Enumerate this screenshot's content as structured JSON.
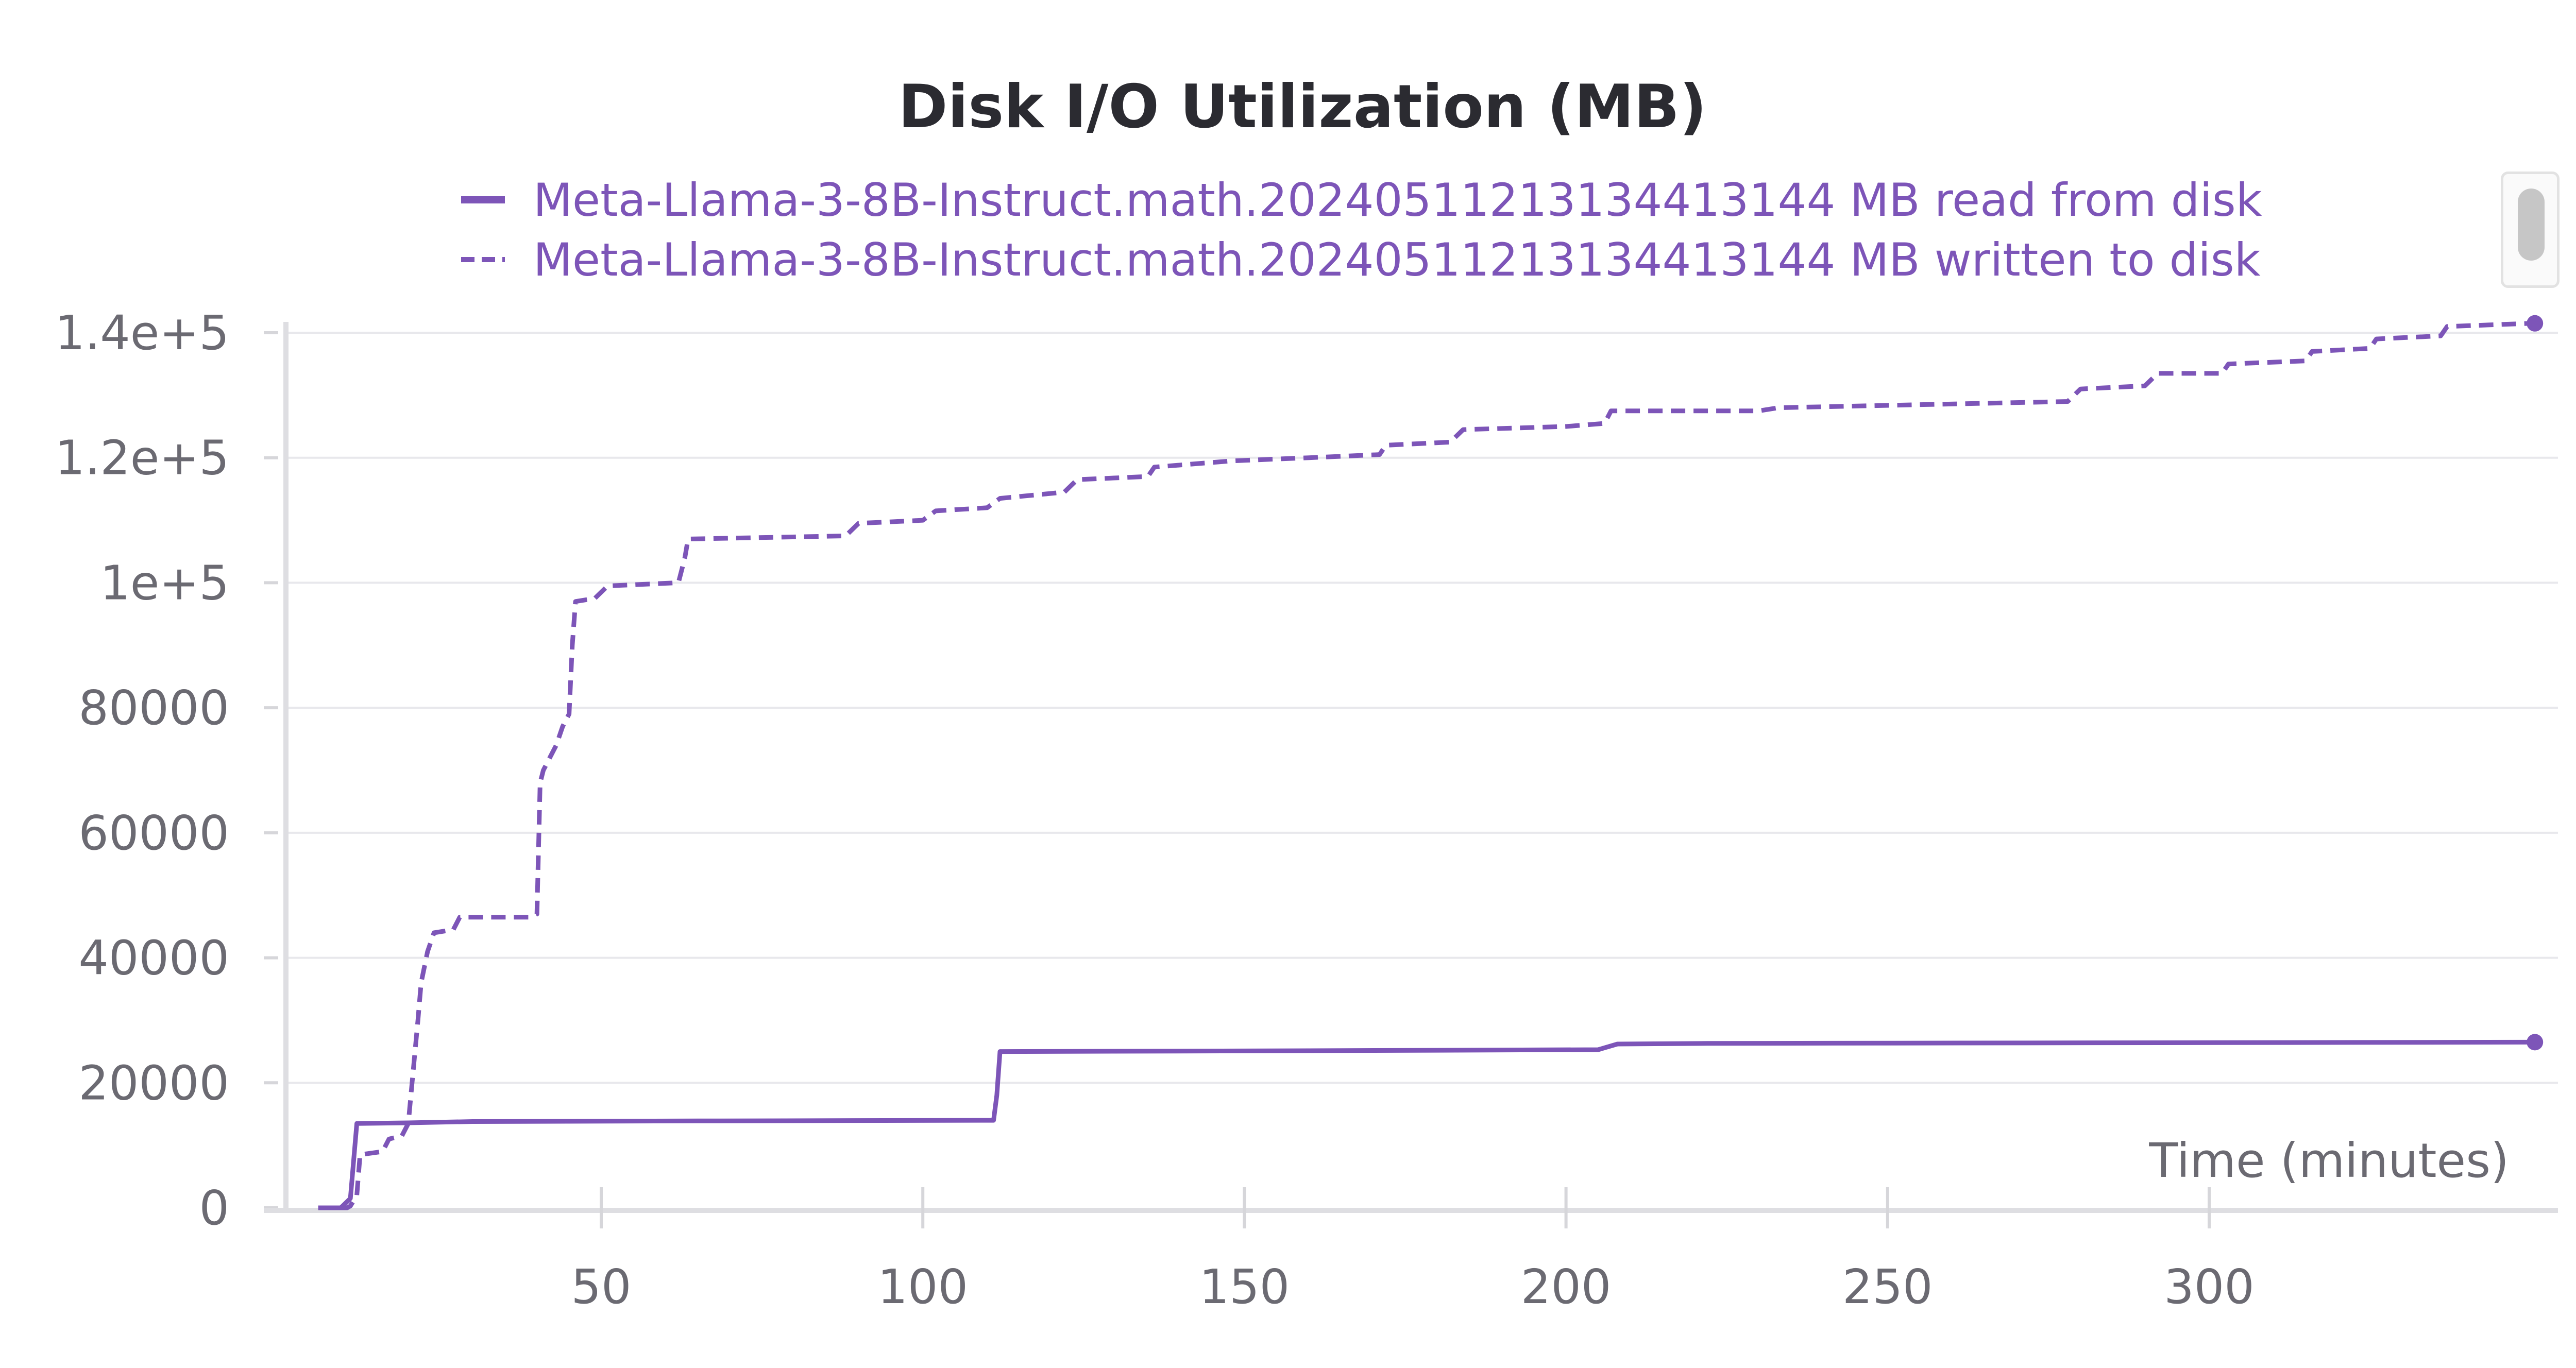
{
  "chart_data": {
    "type": "line",
    "title": "Disk I/O Utilization (MB)",
    "xlabel": "Time (minutes)",
    "ylabel": "",
    "xlim": [
      0,
      350
    ],
    "ylim": [
      0,
      140000
    ],
    "x_ticks": [
      50,
      100,
      150,
      200,
      250,
      300
    ],
    "x_tick_labels": [
      "50",
      "100",
      "150",
      "200",
      "250",
      "300"
    ],
    "y_ticks": [
      0,
      20000,
      40000,
      60000,
      80000,
      100000,
      120000,
      140000
    ],
    "y_tick_labels": [
      "0",
      "20000",
      "40000",
      "60000",
      "80000",
      "1e+5",
      "1.2e+5",
      "1.4e+5"
    ],
    "grid": true,
    "legend_position": "top-center",
    "series": [
      {
        "name": "Meta-Llama-3-8B-Instruct.math.20240511213134413144 MB read from disk",
        "style": "solid",
        "color": "#7d55b8",
        "points": [
          [
            6,
            0
          ],
          [
            9.5,
            0
          ],
          [
            10.5,
            1000
          ],
          [
            11,
            1500
          ],
          [
            12,
            13500
          ],
          [
            20,
            13600
          ],
          [
            30,
            13800
          ],
          [
            65,
            13900
          ],
          [
            111,
            14000
          ],
          [
            111.5,
            18000
          ],
          [
            112,
            25000
          ],
          [
            150,
            25100
          ],
          [
            205,
            25300
          ],
          [
            206,
            25600
          ],
          [
            208,
            26200
          ],
          [
            222,
            26300
          ],
          [
            350,
            26500
          ]
        ]
      },
      {
        "name": "Meta-Llama-3-8B-Instruct.math.20240511213134413144 MB written to disk",
        "style": "dashed",
        "color": "#7d55b8",
        "points": [
          [
            6,
            0
          ],
          [
            10.5,
            0
          ],
          [
            11,
            300
          ],
          [
            12,
            2000
          ],
          [
            12.5,
            8500
          ],
          [
            16,
            9000
          ],
          [
            17,
            11000
          ],
          [
            19,
            11500
          ],
          [
            20,
            13500
          ],
          [
            20.5,
            19000
          ],
          [
            21.5,
            30000
          ],
          [
            22,
            36000
          ],
          [
            23,
            41000
          ],
          [
            24,
            44000
          ],
          [
            27,
            44500
          ],
          [
            28,
            46500
          ],
          [
            39,
            46500
          ],
          [
            40,
            47000
          ],
          [
            40.5,
            68000
          ],
          [
            41,
            70000
          ],
          [
            42,
            72000
          ],
          [
            43,
            74000
          ],
          [
            44,
            77000
          ],
          [
            45,
            79000
          ],
          [
            45.5,
            90000
          ],
          [
            46,
            97000
          ],
          [
            49,
            97500
          ],
          [
            51,
            99500
          ],
          [
            62,
            100000
          ],
          [
            63,
            104000
          ],
          [
            63.5,
            107000
          ],
          [
            88,
            107500
          ],
          [
            90,
            109500
          ],
          [
            100,
            110000
          ],
          [
            102,
            111500
          ],
          [
            110,
            112000
          ],
          [
            112,
            113500
          ],
          [
            122,
            114500
          ],
          [
            124,
            116500
          ],
          [
            135,
            117000
          ],
          [
            136,
            118500
          ],
          [
            148,
            119500
          ],
          [
            160,
            120000
          ],
          [
            171,
            120500
          ],
          [
            172,
            122000
          ],
          [
            182,
            122500
          ],
          [
            184,
            124500
          ],
          [
            200,
            125000
          ],
          [
            206,
            125500
          ],
          [
            207,
            127500
          ],
          [
            230,
            127500
          ],
          [
            233,
            128000
          ],
          [
            278,
            129000
          ],
          [
            280,
            131000
          ],
          [
            290,
            131500
          ],
          [
            292,
            133500
          ],
          [
            302,
            133500
          ],
          [
            303,
            135000
          ],
          [
            315,
            135500
          ],
          [
            316,
            137000
          ],
          [
            325,
            137500
          ],
          [
            326,
            139000
          ],
          [
            336,
            139500
          ],
          [
            337,
            141000
          ],
          [
            350,
            141500
          ]
        ]
      }
    ]
  }
}
